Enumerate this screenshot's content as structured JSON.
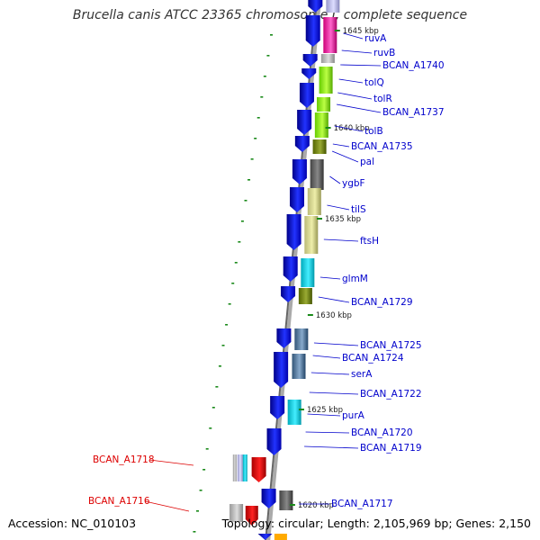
{
  "title": "Brucella canis ATCC 23365 chromosome I, complete sequence",
  "accession": "Accession: NC_010103",
  "topology": "Topology: circular; Length: 2,105,969 bp; Genes: 2,150",
  "colors": {
    "gene_label": "#0000cc",
    "highlight_label": "#dd0000",
    "forward_arrow": "#1010ee",
    "tick": "#1a8a1a"
  },
  "ticks": [
    "1645 kbp",
    "1640 kbp",
    "1635 kbp",
    "1630 kbp",
    "1625 kbp",
    "1620 kbp"
  ],
  "gene_labels": [
    "ruvA",
    "ruvB",
    "BCAN_A1740",
    "tolQ",
    "tolR",
    "BCAN_A1737",
    "tolB",
    "BCAN_A1735",
    "pal",
    "ygbF",
    "tilS",
    "ftsH",
    "glmM",
    "BCAN_A1729",
    "BCAN_A1725",
    "BCAN_A1724",
    "serA",
    "BCAN_A1722",
    "purA",
    "BCAN_A1720",
    "BCAN_A1719",
    "BCAN_A1717"
  ],
  "highlighted_labels": [
    "BCAN_A1718",
    "BCAN_A1716"
  ]
}
